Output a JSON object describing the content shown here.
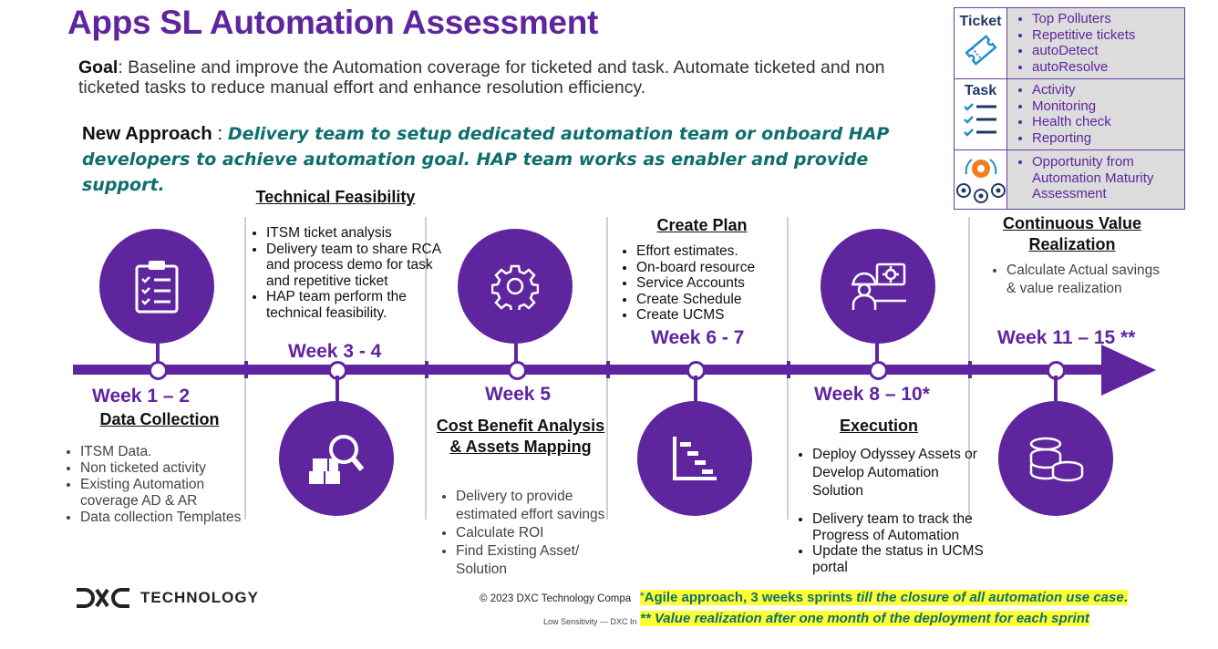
{
  "title": "Apps SL Automation Assessment",
  "goal": {
    "label": "Goal",
    "text": ": Baseline and improve the Automation coverage  for ticketed and task. Automate ticketed and non ticketed tasks to reduce manual effort and enhance resolution efficiency."
  },
  "approach": {
    "label": "New Approach",
    "sep": " : ",
    "text": "Delivery team to setup dedicated automation team or onboard HAP developers to achieve automation goal.  HAP team works as enabler and provide support."
  },
  "legend": {
    "ticket": {
      "label": "Ticket",
      "icon": "ticket-icon",
      "items": [
        "Top Polluters",
        " Repetitive tickets",
        " autoDetect",
        " autoResolve"
      ]
    },
    "task": {
      "label": "Task",
      "icon": "checklist-icon",
      "items": [
        "Activity",
        "Monitoring",
        "Health check",
        "Reporting"
      ]
    },
    "maturity": {
      "icon": "gear-network-icon",
      "items": [
        "Opportunity from Automation Maturity Assessment"
      ]
    }
  },
  "phases": [
    {
      "week": "Week 1 – 2",
      "heading": "Data Collection",
      "icon": "clipboard-checklist-icon",
      "items": [
        "ITSM Data.",
        "Non ticketed activity",
        "Existing Automation coverage AD & AR",
        "Data collection Templates"
      ]
    },
    {
      "week": "Week 3 - 4",
      "heading": "Technical Feasibility",
      "icon": "magnify-boxes-icon",
      "items": [
        "ITSM ticket analysis",
        "Delivery team to share RCA and process demo for task and repetitive ticket",
        "HAP team perform the technical feasibility."
      ]
    },
    {
      "week": "Week 5",
      "heading": "Cost Benefit Analysis & Assets Mapping",
      "icon": "gear-icon",
      "items": [
        "Delivery to provide estimated effort savings",
        "Calculate ROI",
        "Find Existing Asset/ Solution"
      ]
    },
    {
      "week": "Week 6 - 7",
      "heading": "Create Plan",
      "icon": "gantt-chart-icon",
      "items": [
        "Effort estimates.",
        "On-board resource",
        "Service Accounts",
        "Create Schedule",
        "Create UCMS"
      ]
    },
    {
      "week": "Week 8 – 10*",
      "heading": "Execution",
      "icon": "engineer-gear-icon",
      "items": [
        "Deploy Odyssey Assets or Develop Automation Solution",
        "Delivery team to track the Progress of Automation",
        "Update the status in UCMS portal"
      ]
    },
    {
      "week": "Week 11 – 15 **",
      "heading": "Continuous Value Realization",
      "icon": "coins-stack-icon",
      "items": [
        "Calculate Actual savings & value realization"
      ]
    }
  ],
  "footer": {
    "logo_mark": "DXC",
    "logo_text": "TECHNOLOGY",
    "copyright": "© 2023 DXC Technology Compa",
    "sensitivity": "Low Sensitivity — DXC In",
    "note1_prefix": "*",
    "note1_main": "Agile approach, 3 weeks sprints ",
    "note1_italic": "till the closure of all automation use case",
    "note1_end": ".",
    "note2": "** Value realization after one month of the deployment for each sprint"
  },
  "colors": {
    "brand": "#5f259f",
    "accent_text": "#0e6e6e",
    "highlight": "#ffff33"
  }
}
